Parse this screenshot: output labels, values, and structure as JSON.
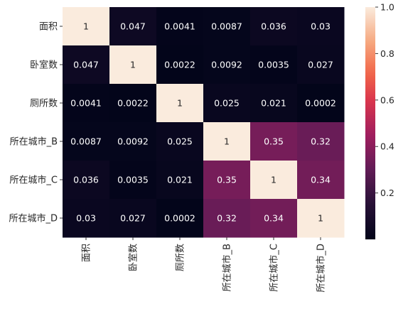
{
  "chart_data": {
    "type": "heatmap",
    "title": "",
    "xlabel": "",
    "ylabel": "",
    "x_categories": [
      "面积",
      "卧室数",
      "厕所数",
      "所在城市_B",
      "所在城市_C",
      "所在城市_D"
    ],
    "y_categories": [
      "面积",
      "卧室数",
      "厕所数",
      "所在城市_B",
      "所在城市_C",
      "所在城市_D"
    ],
    "cells": [
      [
        "1",
        "0.047",
        "0.0041",
        "0.0087",
        "0.036",
        "0.03"
      ],
      [
        "0.047",
        "1",
        "0.0022",
        "0.0092",
        "0.0035",
        "0.027"
      ],
      [
        "0.0041",
        "0.0022",
        "1",
        "0.025",
        "0.021",
        "0.0002"
      ],
      [
        "0.0087",
        "0.0092",
        "0.025",
        "1",
        "0.35",
        "0.32"
      ],
      [
        "0.036",
        "0.0035",
        "0.021",
        "0.35",
        "1",
        "0.34"
      ],
      [
        "0.03",
        "0.027",
        "0.0002",
        "0.32",
        "0.34",
        "1"
      ]
    ],
    "colorbar": {
      "range": [
        0.0002,
        1.0
      ],
      "ticks": [
        "0.2",
        "0.4",
        "0.6",
        "0.8",
        "1.0"
      ],
      "colormap": "rocket"
    },
    "cell_label_dark_color": "#262626",
    "cell_label_light_color": "#ffffff"
  }
}
